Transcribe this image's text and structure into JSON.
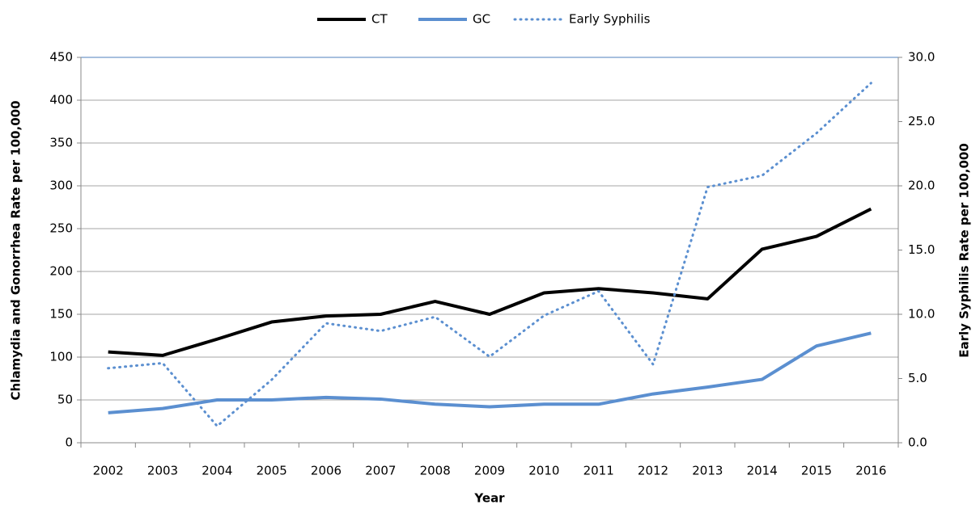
{
  "chart_data": {
    "type": "line",
    "x_label": "Year",
    "y_label": "Chlamydia and Gonorrhea Rate per 100,000",
    "y2_label": "Early Syphilis Rate per 100,000",
    "categories": [
      "2002",
      "2003",
      "2004",
      "2005",
      "2006",
      "2007",
      "2008",
      "2009",
      "2010",
      "2011",
      "2012",
      "2013",
      "2014",
      "2015",
      "2016"
    ],
    "series": [
      {
        "name": "CT",
        "color": "#000000",
        "style": "solid",
        "values": [
          106,
          102,
          121,
          141,
          148,
          150,
          165,
          150,
          175,
          180,
          175,
          168,
          226,
          241,
          273
        ]
      },
      {
        "name": "GC",
        "color": "#5b8fd0",
        "style": "solid",
        "values": [
          35,
          40,
          50,
          50,
          53,
          51,
          45,
          42,
          45,
          45,
          57,
          65,
          74,
          113,
          128
        ]
      },
      {
        "name": "Early Syphilis",
        "color": "#5b8fd0",
        "style": "dotted",
        "axis": "y2",
        "values": [
          5.8,
          6.2,
          1.3,
          4.9,
          9.3,
          8.7,
          9.8,
          6.7,
          9.9,
          11.8,
          6.1,
          19.9,
          20.8,
          24.1,
          28.0
        ]
      }
    ],
    "ylim": [
      0,
      450
    ],
    "yticks": [
      0,
      50,
      100,
      150,
      200,
      250,
      300,
      350,
      400,
      450
    ],
    "y2lim": [
      0,
      30
    ],
    "y2ticks": [
      {
        "value": 0,
        "label": "0.0"
      },
      {
        "value": 5,
        "label": "5.0"
      },
      {
        "value": 10,
        "label": "10.0"
      },
      {
        "value": 15,
        "label": "15.0"
      },
      {
        "value": 20,
        "label": "20.0"
      },
      {
        "value": 25,
        "label": "25.0"
      },
      {
        "value": 30,
        "label": "30.0"
      }
    ],
    "grid": true,
    "legend": "top"
  }
}
